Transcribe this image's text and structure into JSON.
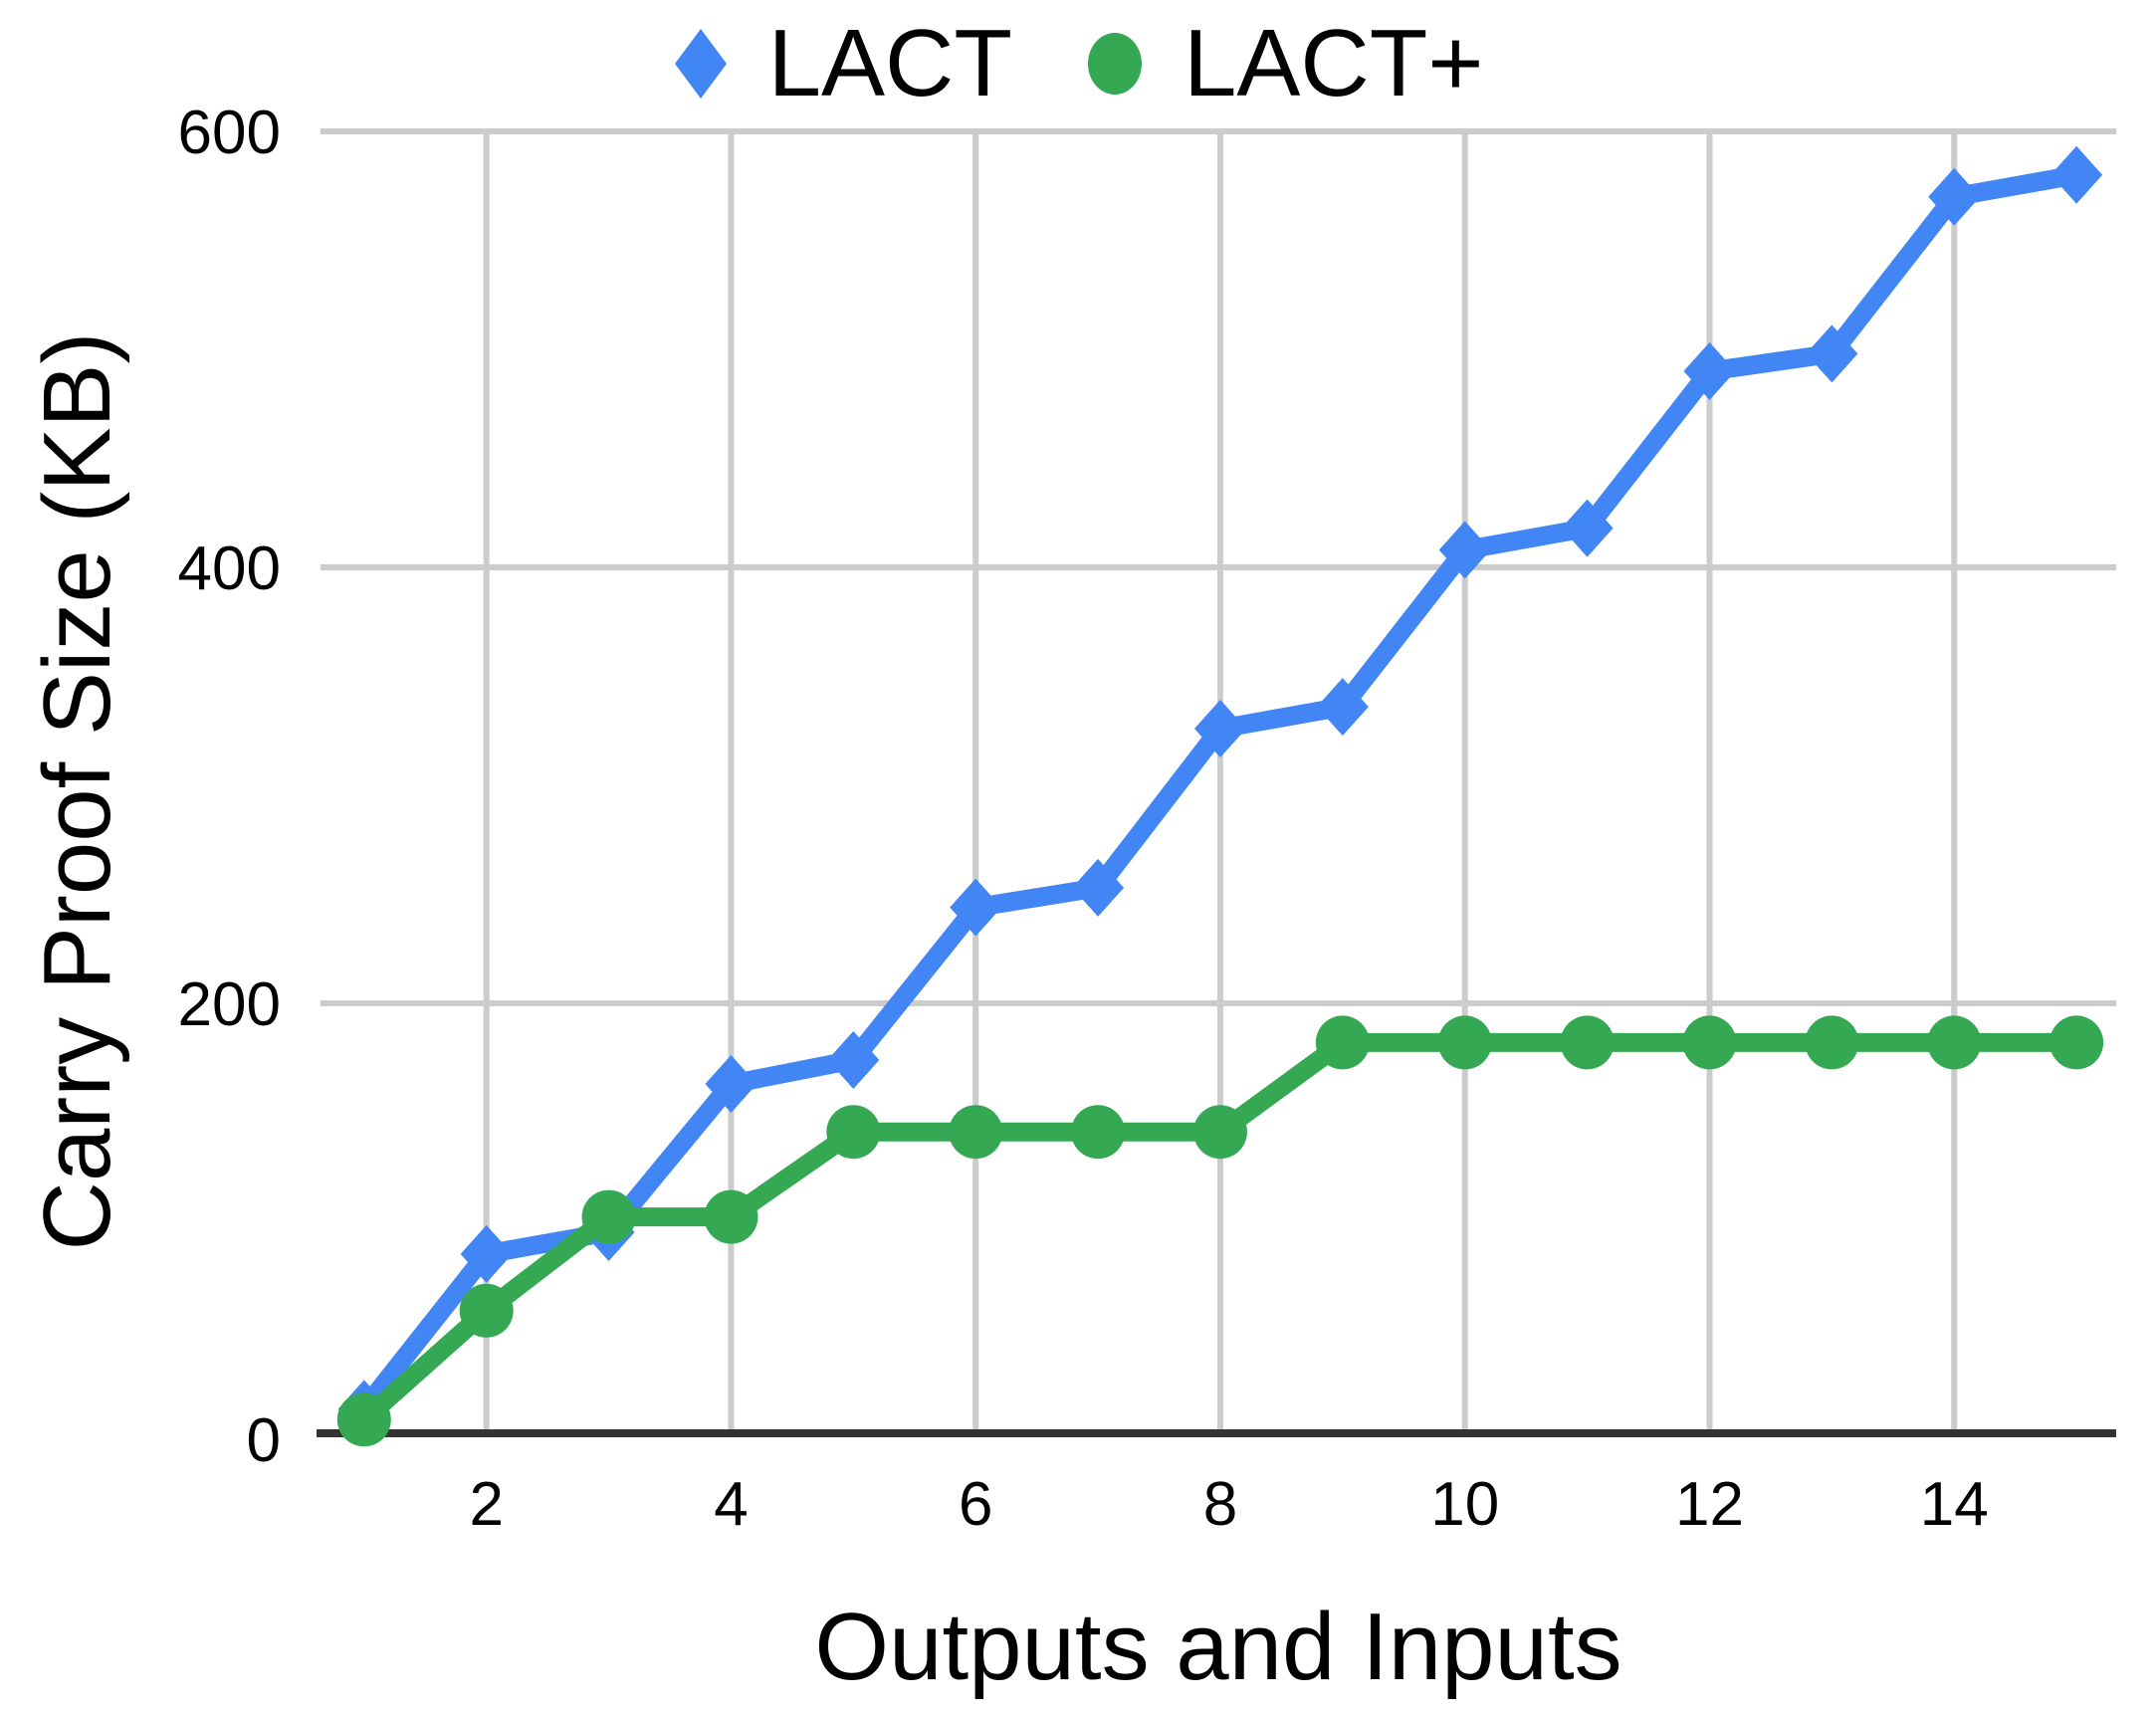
{
  "legend": {
    "items": [
      {
        "label": "LACT",
        "marker": "diamond",
        "color": "#4285f4"
      },
      {
        "label": "LACT+",
        "marker": "circle",
        "color": "#34a853"
      }
    ]
  },
  "chart_data": {
    "type": "line",
    "title": "",
    "xlabel": "Outputs and Inputs",
    "ylabel": "Carry Proof Size (KB)",
    "x": [
      1,
      2,
      3,
      4,
      5,
      6,
      7,
      8,
      9,
      10,
      11,
      12,
      13,
      14,
      15
    ],
    "series": [
      {
        "name": "LACT",
        "marker": "diamond",
        "color": "#4285f4",
        "values": [
          14,
          85,
          95,
          163,
          174,
          244,
          253,
          326,
          336,
          408,
          418,
          490,
          498,
          570,
          580
        ]
      },
      {
        "name": "LACT+",
        "marker": "circle",
        "color": "#34a853",
        "values": [
          9,
          59,
          102,
          102,
          141,
          141,
          141,
          141,
          182,
          182,
          182,
          182,
          182,
          182,
          182
        ]
      }
    ],
    "ylim": [
      0,
      600
    ],
    "xlim": [
      0.65,
      15.35
    ],
    "y_ticks": [
      0,
      200,
      400,
      600
    ],
    "x_ticks": [
      2,
      4,
      6,
      8,
      10,
      12,
      14
    ],
    "grid": true,
    "legend_position": "top",
    "colors": {
      "gridline": "#cccccc",
      "axis_line": "#333333",
      "text": "#000000",
      "background": "#ffffff"
    }
  }
}
